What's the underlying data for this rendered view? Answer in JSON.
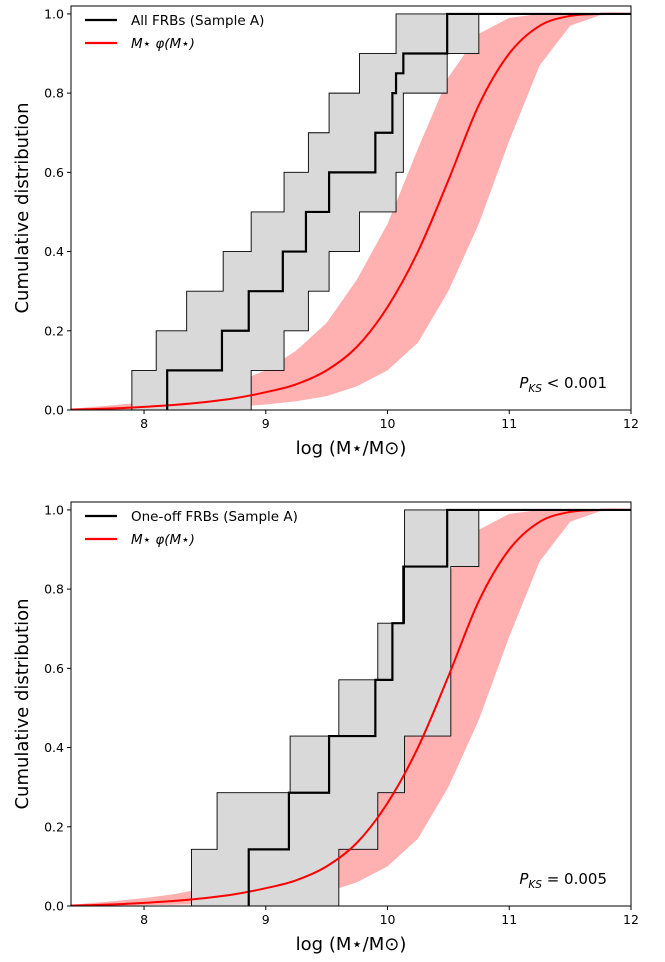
{
  "chart_data": [
    {
      "type": "line",
      "xlabel": "log (M⋆/M⊙)",
      "ylabel": "Cumulative distribution",
      "xlim": [
        7.4,
        12
      ],
      "ylim": [
        0,
        1.02
      ],
      "xticks": [
        "8",
        "9",
        "10",
        "11",
        "12"
      ],
      "yticks": [
        "0.0",
        "0.2",
        "0.4",
        "0.6",
        "0.8",
        "1.0"
      ],
      "legend_position": "top-left",
      "annotation": {
        "prefix": "P",
        "subscript": "KS",
        "relation": " < ",
        "value": "0.001"
      },
      "series": [
        {
          "name": "All FRBs (Sample A)",
          "kind": "step",
          "color": "#000000",
          "x": [
            8.19,
            8.64,
            8.86,
            9.14,
            9.33,
            9.52,
            9.9,
            10.04,
            10.07,
            10.13,
            10.49
          ],
          "y": [
            0.1,
            0.2,
            0.3,
            0.4,
            0.5,
            0.6,
            0.7,
            0.8,
            0.85,
            0.9,
            1.0
          ],
          "band": {
            "color": "#d9d9d9",
            "x": [
              7.9,
              8.1,
              8.35,
              8.65,
              8.88,
              9.15,
              9.35,
              9.52,
              9.77,
              10.07,
              10.13,
              10.49,
              10.75
            ],
            "lower": [
              0,
              0,
              0,
              0,
              0.1,
              0.2,
              0.3,
              0.4,
              0.5,
              0.6,
              0.8,
              0.9,
              1.0
            ],
            "upper": [
              0.1,
              0.2,
              0.3,
              0.4,
              0.5,
              0.6,
              0.7,
              0.8,
              0.9,
              1.0,
              1.0,
              1.0,
              1.0
            ]
          }
        },
        {
          "name": "M⋆ φ(M⋆)",
          "kind": "curve",
          "color": "#ff0000",
          "x": [
            7.4,
            7.75,
            8.0,
            8.25,
            8.5,
            8.75,
            9.0,
            9.25,
            9.5,
            9.75,
            10.0,
            10.25,
            10.5,
            10.75,
            11.0,
            11.25,
            11.5,
            11.75,
            12.0
          ],
          "y": [
            0.001,
            0.004,
            0.008,
            0.013,
            0.02,
            0.03,
            0.045,
            0.065,
            0.1,
            0.16,
            0.26,
            0.4,
            0.58,
            0.77,
            0.9,
            0.97,
            0.995,
            1.0,
            1.0
          ],
          "band": {
            "color": "#ffb0b0",
            "x": [
              7.4,
              7.75,
              8.0,
              8.25,
              8.5,
              8.75,
              9.0,
              9.25,
              9.5,
              9.75,
              10.0,
              10.25,
              10.5,
              10.75,
              11.0,
              11.25,
              11.5,
              11.75,
              12.0
            ],
            "lower": [
              0.0,
              0.001,
              0.002,
              0.003,
              0.005,
              0.008,
              0.014,
              0.022,
              0.035,
              0.06,
              0.1,
              0.17,
              0.3,
              0.47,
              0.68,
              0.87,
              0.97,
              0.997,
              1.0
            ],
            "upper": [
              0.003,
              0.012,
              0.02,
              0.03,
              0.045,
              0.07,
              0.1,
              0.15,
              0.22,
              0.33,
              0.47,
              0.66,
              0.84,
              0.95,
              0.99,
              1.0,
              1.0,
              1.0,
              1.0
            ]
          }
        }
      ]
    },
    {
      "type": "line",
      "xlabel": "log (M⋆/M⊙)",
      "ylabel": "Cumulative distribution",
      "xlim": [
        7.4,
        12
      ],
      "ylim": [
        0,
        1.02
      ],
      "xticks": [
        "8",
        "9",
        "10",
        "11",
        "12"
      ],
      "yticks": [
        "0.0",
        "0.2",
        "0.4",
        "0.6",
        "0.8",
        "1.0"
      ],
      "legend_position": "top-left",
      "annotation": {
        "prefix": "P",
        "subscript": "KS",
        "relation": " = ",
        "value": "0.005"
      },
      "series": [
        {
          "name": "One-off FRBs (Sample A)",
          "kind": "step",
          "color": "#000000",
          "x": [
            8.86,
            9.19,
            9.52,
            9.9,
            10.04,
            10.13,
            10.49
          ],
          "y": [
            0.143,
            0.286,
            0.429,
            0.571,
            0.714,
            0.857,
            1.0
          ],
          "band": {
            "color": "#d9d9d9",
            "x": [
              8.39,
              8.6,
              9.2,
              9.6,
              9.92,
              10.14,
              10.52,
              10.75
            ],
            "lower": [
              0,
              0,
              0,
              0.143,
              0.286,
              0.429,
              0.857,
              1.0
            ],
            "upper": [
              0.143,
              0.286,
              0.429,
              0.571,
              0.714,
              1.0,
              1.0,
              1.0
            ]
          }
        },
        {
          "name": "M⋆ φ(M⋆)",
          "kind": "curve",
          "color": "#ff0000",
          "x": [
            7.4,
            7.75,
            8.0,
            8.25,
            8.5,
            8.75,
            9.0,
            9.25,
            9.5,
            9.75,
            10.0,
            10.25,
            10.5,
            10.75,
            11.0,
            11.25,
            11.5,
            11.75,
            12.0
          ],
          "y": [
            0.001,
            0.004,
            0.008,
            0.013,
            0.02,
            0.03,
            0.045,
            0.065,
            0.1,
            0.16,
            0.26,
            0.4,
            0.58,
            0.77,
            0.9,
            0.97,
            0.995,
            1.0,
            1.0
          ],
          "band": {
            "color": "#ffb0b0",
            "x": [
              7.4,
              7.75,
              8.0,
              8.25,
              8.5,
              8.75,
              9.0,
              9.25,
              9.5,
              9.75,
              10.0,
              10.25,
              10.5,
              10.75,
              11.0,
              11.25,
              11.5,
              11.75,
              12.0
            ],
            "lower": [
              0.0,
              0.001,
              0.002,
              0.003,
              0.005,
              0.008,
              0.014,
              0.022,
              0.035,
              0.06,
              0.1,
              0.17,
              0.3,
              0.47,
              0.68,
              0.87,
              0.97,
              0.997,
              1.0
            ],
            "upper": [
              0.003,
              0.012,
              0.02,
              0.03,
              0.045,
              0.07,
              0.1,
              0.15,
              0.22,
              0.33,
              0.47,
              0.66,
              0.84,
              0.95,
              0.99,
              1.0,
              1.0,
              1.0,
              1.0
            ]
          }
        }
      ]
    }
  ]
}
